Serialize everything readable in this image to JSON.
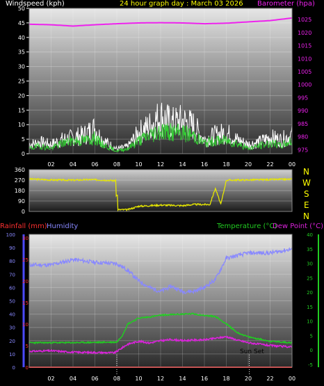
{
  "header": {
    "windspeed_label": "Windspeed (kph)",
    "title": "24 hour graph day : March 03 2026",
    "barometer_label": "Barometer (hpa)"
  },
  "middle": {
    "compass": [
      "N",
      "W",
      "S",
      "E",
      "N"
    ]
  },
  "bottom_header": {
    "rainfall_label": "Rainfall (mm)",
    "humidity_label": "Humidity",
    "temperature_label": "Temperature (°C)",
    "dewpoint_label": "Dew Point (°C)"
  },
  "annotation": {
    "sunset": "Sun Set"
  },
  "colors": {
    "windspeed": "#ffffff",
    "wind_avg": "#33cc33",
    "barometer": "#ee22ee",
    "direction": "#e6e600",
    "rainfall": "#ff2020",
    "humidity": "#8888ff",
    "temperature": "#22cc22",
    "dewpoint": "#dd22dd",
    "title": "#ffff00"
  },
  "chart_data": [
    {
      "type": "line",
      "name": "wind-barometer",
      "x_ticks": [
        "02",
        "04",
        "06",
        "08",
        "10",
        "12",
        "14",
        "16",
        "18",
        "20",
        "22",
        "00"
      ],
      "x_tick_hours": [
        2,
        4,
        6,
        8,
        10,
        12,
        14,
        16,
        18,
        20,
        22,
        24
      ],
      "y_left_ticks": [
        0,
        5,
        10,
        15,
        20,
        25,
        30,
        35,
        40,
        45,
        50
      ],
      "y_left_lim": [
        0,
        50
      ],
      "y_right_ticks": [
        975,
        980,
        985,
        990,
        995,
        1000,
        1005,
        1010,
        1015,
        1020,
        1025
      ],
      "y_right_lim": [
        973.5,
        1029.3
      ],
      "series": [
        {
          "name": "Windspeed (kph)",
          "x": [
            0,
            1,
            2,
            3,
            4,
            5,
            6,
            6.5,
            7,
            8,
            9,
            10,
            11,
            12,
            13,
            14,
            15,
            16,
            17,
            18,
            19,
            20,
            21,
            22,
            23,
            24
          ],
          "values": [
            4,
            5,
            4,
            6,
            7,
            8,
            11,
            7,
            5,
            2,
            3,
            9,
            12,
            16,
            13,
            14,
            12,
            6,
            8,
            9,
            6,
            4,
            5,
            7,
            6,
            8
          ]
        },
        {
          "name": "Wind average",
          "x": [
            0,
            1,
            2,
            3,
            4,
            5,
            6,
            6.5,
            7,
            8,
            9,
            10,
            11,
            12,
            13,
            14,
            15,
            16,
            17,
            18,
            19,
            20,
            21,
            22,
            23,
            24
          ],
          "values": [
            2,
            3,
            2,
            4,
            5,
            5,
            6,
            4,
            3,
            1,
            2,
            5,
            7,
            9,
            8,
            8,
            7,
            4,
            5,
            5,
            4,
            2,
            3,
            4,
            3,
            5
          ]
        },
        {
          "name": "Barometer (hpa)",
          "x": [
            0,
            2,
            4,
            6,
            8,
            10,
            12,
            14,
            16,
            18,
            20,
            22,
            24
          ],
          "values": [
            1023.2,
            1023.0,
            1022.5,
            1023.0,
            1023.4,
            1023.7,
            1023.8,
            1023.7,
            1023.4,
            1023.6,
            1024.1,
            1024.6,
            1025.6
          ]
        }
      ]
    },
    {
      "type": "scatter",
      "name": "wind-direction",
      "x_ticks": [
        "02",
        "04",
        "06",
        "08",
        "10",
        "12",
        "14",
        "16",
        "18",
        "20",
        "22",
        "00"
      ],
      "y_ticks": [
        0,
        90,
        180,
        270,
        360
      ],
      "y_lim": [
        0,
        360
      ],
      "series": [
        {
          "name": "Wind direction",
          "x": [
            0,
            2,
            4,
            5.5,
            7,
            7.9,
            8.1,
            9,
            10,
            12,
            14,
            15,
            16.5,
            17,
            17.5,
            18,
            20,
            22,
            24
          ],
          "values": [
            280,
            272,
            270,
            275,
            270,
            265,
            15,
            15,
            45,
            55,
            50,
            60,
            60,
            200,
            60,
            270,
            272,
            275,
            278
          ]
        }
      ]
    },
    {
      "type": "line",
      "name": "temp-humidity",
      "x_ticks": [
        "02",
        "04",
        "06",
        "08",
        "10",
        "12",
        "14",
        "16",
        "18",
        "20",
        "22",
        "00"
      ],
      "x_tick_hours": [
        2,
        4,
        6,
        8,
        10,
        12,
        14,
        16,
        18,
        20,
        22,
        24
      ],
      "y_humidity_ticks": [
        0,
        10,
        20,
        30,
        40,
        50,
        60,
        70,
        80,
        90,
        100
      ],
      "y_humidity_lim": [
        0,
        100
      ],
      "y_rain_ticks": [
        0,
        5,
        10,
        15,
        20,
        25,
        30
      ],
      "y_rain_lim": [
        0,
        30
      ],
      "y_temp_ticks": [
        -5,
        0,
        5,
        10,
        15,
        20,
        25,
        30,
        35,
        40
      ],
      "y_temp_lim": [
        -6,
        40
      ],
      "series": [
        {
          "name": "Humidity",
          "x": [
            0,
            2,
            4,
            6,
            8,
            9,
            10,
            11,
            12,
            13,
            14,
            15,
            16,
            17,
            18,
            20,
            22,
            24
          ],
          "values": [
            77,
            77,
            81,
            79,
            78,
            73,
            65,
            60,
            57,
            61,
            57,
            57,
            60,
            66,
            82,
            86,
            86,
            89
          ]
        },
        {
          "name": "Rainfall (mm)",
          "x": [
            0,
            24
          ],
          "values": [
            0,
            0
          ]
        },
        {
          "name": "Temperature (°C)",
          "x": [
            0,
            2,
            4,
            6,
            8,
            8.5,
            9,
            10,
            11,
            12,
            13,
            14,
            15,
            16,
            17,
            18,
            19,
            20,
            22,
            24
          ],
          "values": [
            2.5,
            2.5,
            2.5,
            2.6,
            2.7,
            5,
            9,
            11,
            11.4,
            12,
            12.2,
            12.4,
            12.5,
            11.9,
            11.6,
            9,
            6,
            4.5,
            3,
            2.5
          ]
        },
        {
          "name": "Dew Point (°C)",
          "x": [
            0,
            2,
            4,
            6,
            7.8,
            9,
            10,
            11,
            12,
            13,
            14,
            15,
            16,
            17,
            18,
            19,
            20,
            22,
            24
          ],
          "values": [
            -0.5,
            -0.3,
            -0.8,
            -0.9,
            -1,
            2,
            3,
            2.4,
            3.2,
            3.6,
            3.2,
            3.4,
            3.5,
            4,
            4.6,
            3.4,
            2.5,
            1.5,
            1
          ]
        }
      ],
      "sunset_hour": 20.1,
      "sunrise_hour": 8.0
    }
  ]
}
